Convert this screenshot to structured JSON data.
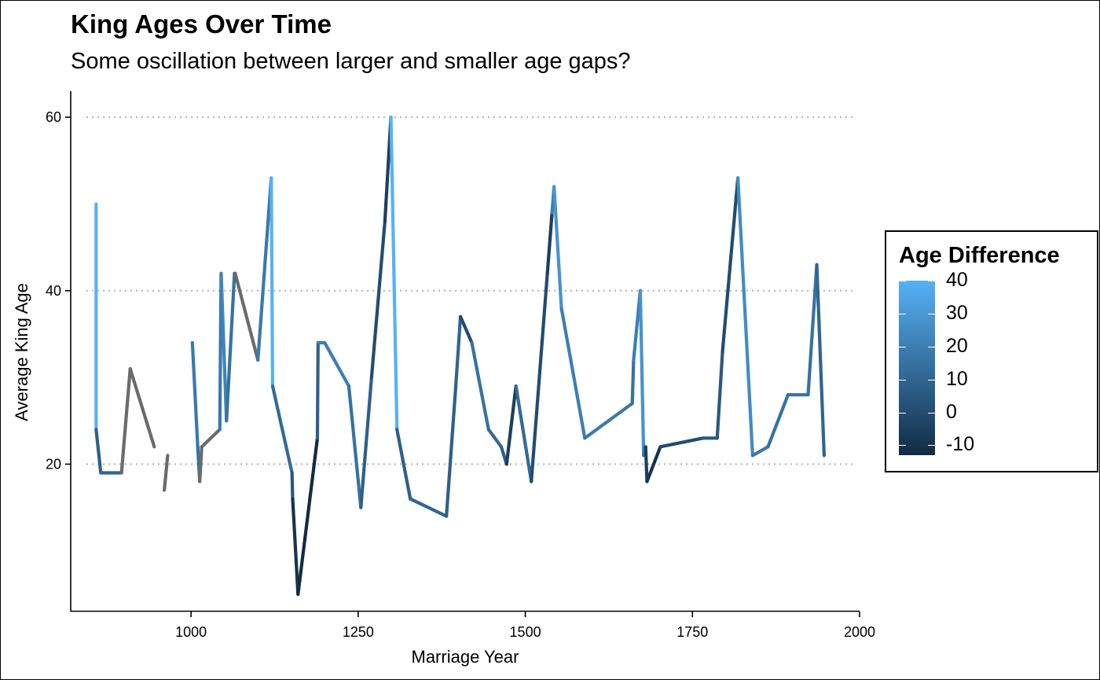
{
  "chart_data": {
    "type": "line",
    "title": "King Ages Over Time",
    "subtitle": "Some oscillation between larger and smaller age gaps?",
    "xlabel": "Marriage Year",
    "ylabel": "Average King Age",
    "xlim": [
      820,
      2000
    ],
    "ylim": [
      3,
      63
    ],
    "xticks": [
      1000,
      1250,
      1500,
      1750,
      2000
    ],
    "xtick_labels": [
      "1000",
      "1250",
      "1500",
      "1750",
      "2000"
    ],
    "yticks": [
      20,
      40,
      60
    ],
    "ytick_labels": [
      "20",
      "40",
      "60"
    ],
    "grid": "horizontal dotted at y ticks",
    "legend": {
      "title": "Age Difference",
      "placement": "right",
      "range": [
        -13,
        40
      ],
      "ticks": [
        40,
        30,
        20,
        10,
        0,
        -10
      ],
      "tick_labels": [
        "40",
        "30",
        "20",
        "10",
        "0",
        "-10"
      ],
      "color_low": "#132B43",
      "color_high": "#56B1F7"
    },
    "na_color": "#6b6b6b",
    "series": [
      {
        "points": [
          {
            "x": 858,
            "y": 50,
            "c": 40
          },
          {
            "x": 858,
            "y": 24,
            "c": 8
          },
          {
            "x": 865,
            "y": 19,
            "c": 10
          },
          {
            "x": 880,
            "y": 19,
            "c": 10
          },
          {
            "x": 896,
            "y": 19,
            "c": null
          },
          {
            "x": 909,
            "y": 31,
            "c": null
          },
          {
            "x": 945,
            "y": 22,
            "c": null
          }
        ]
      },
      {
        "points": [
          {
            "x": 960,
            "y": 17,
            "c": null
          },
          {
            "x": 965,
            "y": 21,
            "c": null
          }
        ]
      },
      {
        "points": [
          {
            "x": 1002,
            "y": 34,
            "c": 18
          },
          {
            "x": 1010,
            "y": 22,
            "c": 15
          },
          {
            "x": 1013,
            "y": 18,
            "c": null
          },
          {
            "x": 1016,
            "y": 22,
            "c": null
          },
          {
            "x": 1043,
            "y": 24,
            "c": 18
          },
          {
            "x": 1045,
            "y": 42,
            "c": 22
          },
          {
            "x": 1053,
            "y": 25,
            "c": 15
          },
          {
            "x": 1065,
            "y": 42,
            "c": 12
          },
          {
            "x": 1066,
            "y": 42,
            "c": null
          },
          {
            "x": 1100,
            "y": 32,
            "c": 18
          },
          {
            "x": 1120,
            "y": 53,
            "c": 40
          },
          {
            "x": 1122,
            "y": 29,
            "c": 12
          },
          {
            "x": 1151,
            "y": 19,
            "c": 5
          },
          {
            "x": 1152,
            "y": 16,
            "c": -10
          },
          {
            "x": 1160,
            "y": 5,
            "c": -13
          },
          {
            "x": 1189,
            "y": 23,
            "c": 8
          },
          {
            "x": 1190,
            "y": 34,
            "c": 20
          },
          {
            "x": 1200,
            "y": 34,
            "c": 20
          },
          {
            "x": 1236,
            "y": 29,
            "c": 15
          },
          {
            "x": 1254,
            "y": 15,
            "c": 8
          },
          {
            "x": 1270,
            "y": 30,
            "c": 0
          },
          {
            "x": 1290,
            "y": 48,
            "c": -5
          },
          {
            "x": 1299,
            "y": 60,
            "c": 40
          },
          {
            "x": 1308,
            "y": 24,
            "c": 8
          },
          {
            "x": 1328,
            "y": 16,
            "c": 10
          },
          {
            "x": 1382,
            "y": 14,
            "c": 8
          },
          {
            "x": 1396,
            "y": 29,
            "c": 10
          },
          {
            "x": 1403,
            "y": 37,
            "c": 0
          },
          {
            "x": 1420,
            "y": 34,
            "c": 15
          },
          {
            "x": 1445,
            "y": 24,
            "c": 12
          },
          {
            "x": 1464,
            "y": 22,
            "c": 8
          },
          {
            "x": 1472,
            "y": 20,
            "c": -5
          },
          {
            "x": 1486,
            "y": 29,
            "c": 12
          },
          {
            "x": 1509,
            "y": 18,
            "c": 0
          },
          {
            "x": 1533,
            "y": 42,
            "c": -5
          },
          {
            "x": 1540,
            "y": 49,
            "c": 20
          },
          {
            "x": 1543,
            "y": 52,
            "c": 28
          },
          {
            "x": 1554,
            "y": 38,
            "c": 20
          },
          {
            "x": 1589,
            "y": 23,
            "c": 18
          },
          {
            "x": 1660,
            "y": 27,
            "c": 15
          },
          {
            "x": 1662,
            "y": 32,
            "c": 20
          },
          {
            "x": 1672,
            "y": 40,
            "c": 28
          },
          {
            "x": 1677,
            "y": 21,
            "c": 15
          },
          {
            "x": 1680,
            "y": 22,
            "c": -5
          },
          {
            "x": 1682,
            "y": 18,
            "c": -10
          },
          {
            "x": 1702,
            "y": 22,
            "c": 0
          },
          {
            "x": 1766,
            "y": 23,
            "c": 5
          },
          {
            "x": 1787,
            "y": 23,
            "c": 5
          },
          {
            "x": 1795,
            "y": 33,
            "c": 0
          },
          {
            "x": 1818,
            "y": 53,
            "c": 25
          },
          {
            "x": 1840,
            "y": 21,
            "c": 18
          },
          {
            "x": 1863,
            "y": 22,
            "c": 15
          },
          {
            "x": 1893,
            "y": 28,
            "c": 15
          },
          {
            "x": 1923,
            "y": 28,
            "c": 15
          },
          {
            "x": 1936,
            "y": 43,
            "c": 10
          },
          {
            "x": 1947,
            "y": 21,
            "c": 12
          }
        ]
      }
    ]
  }
}
